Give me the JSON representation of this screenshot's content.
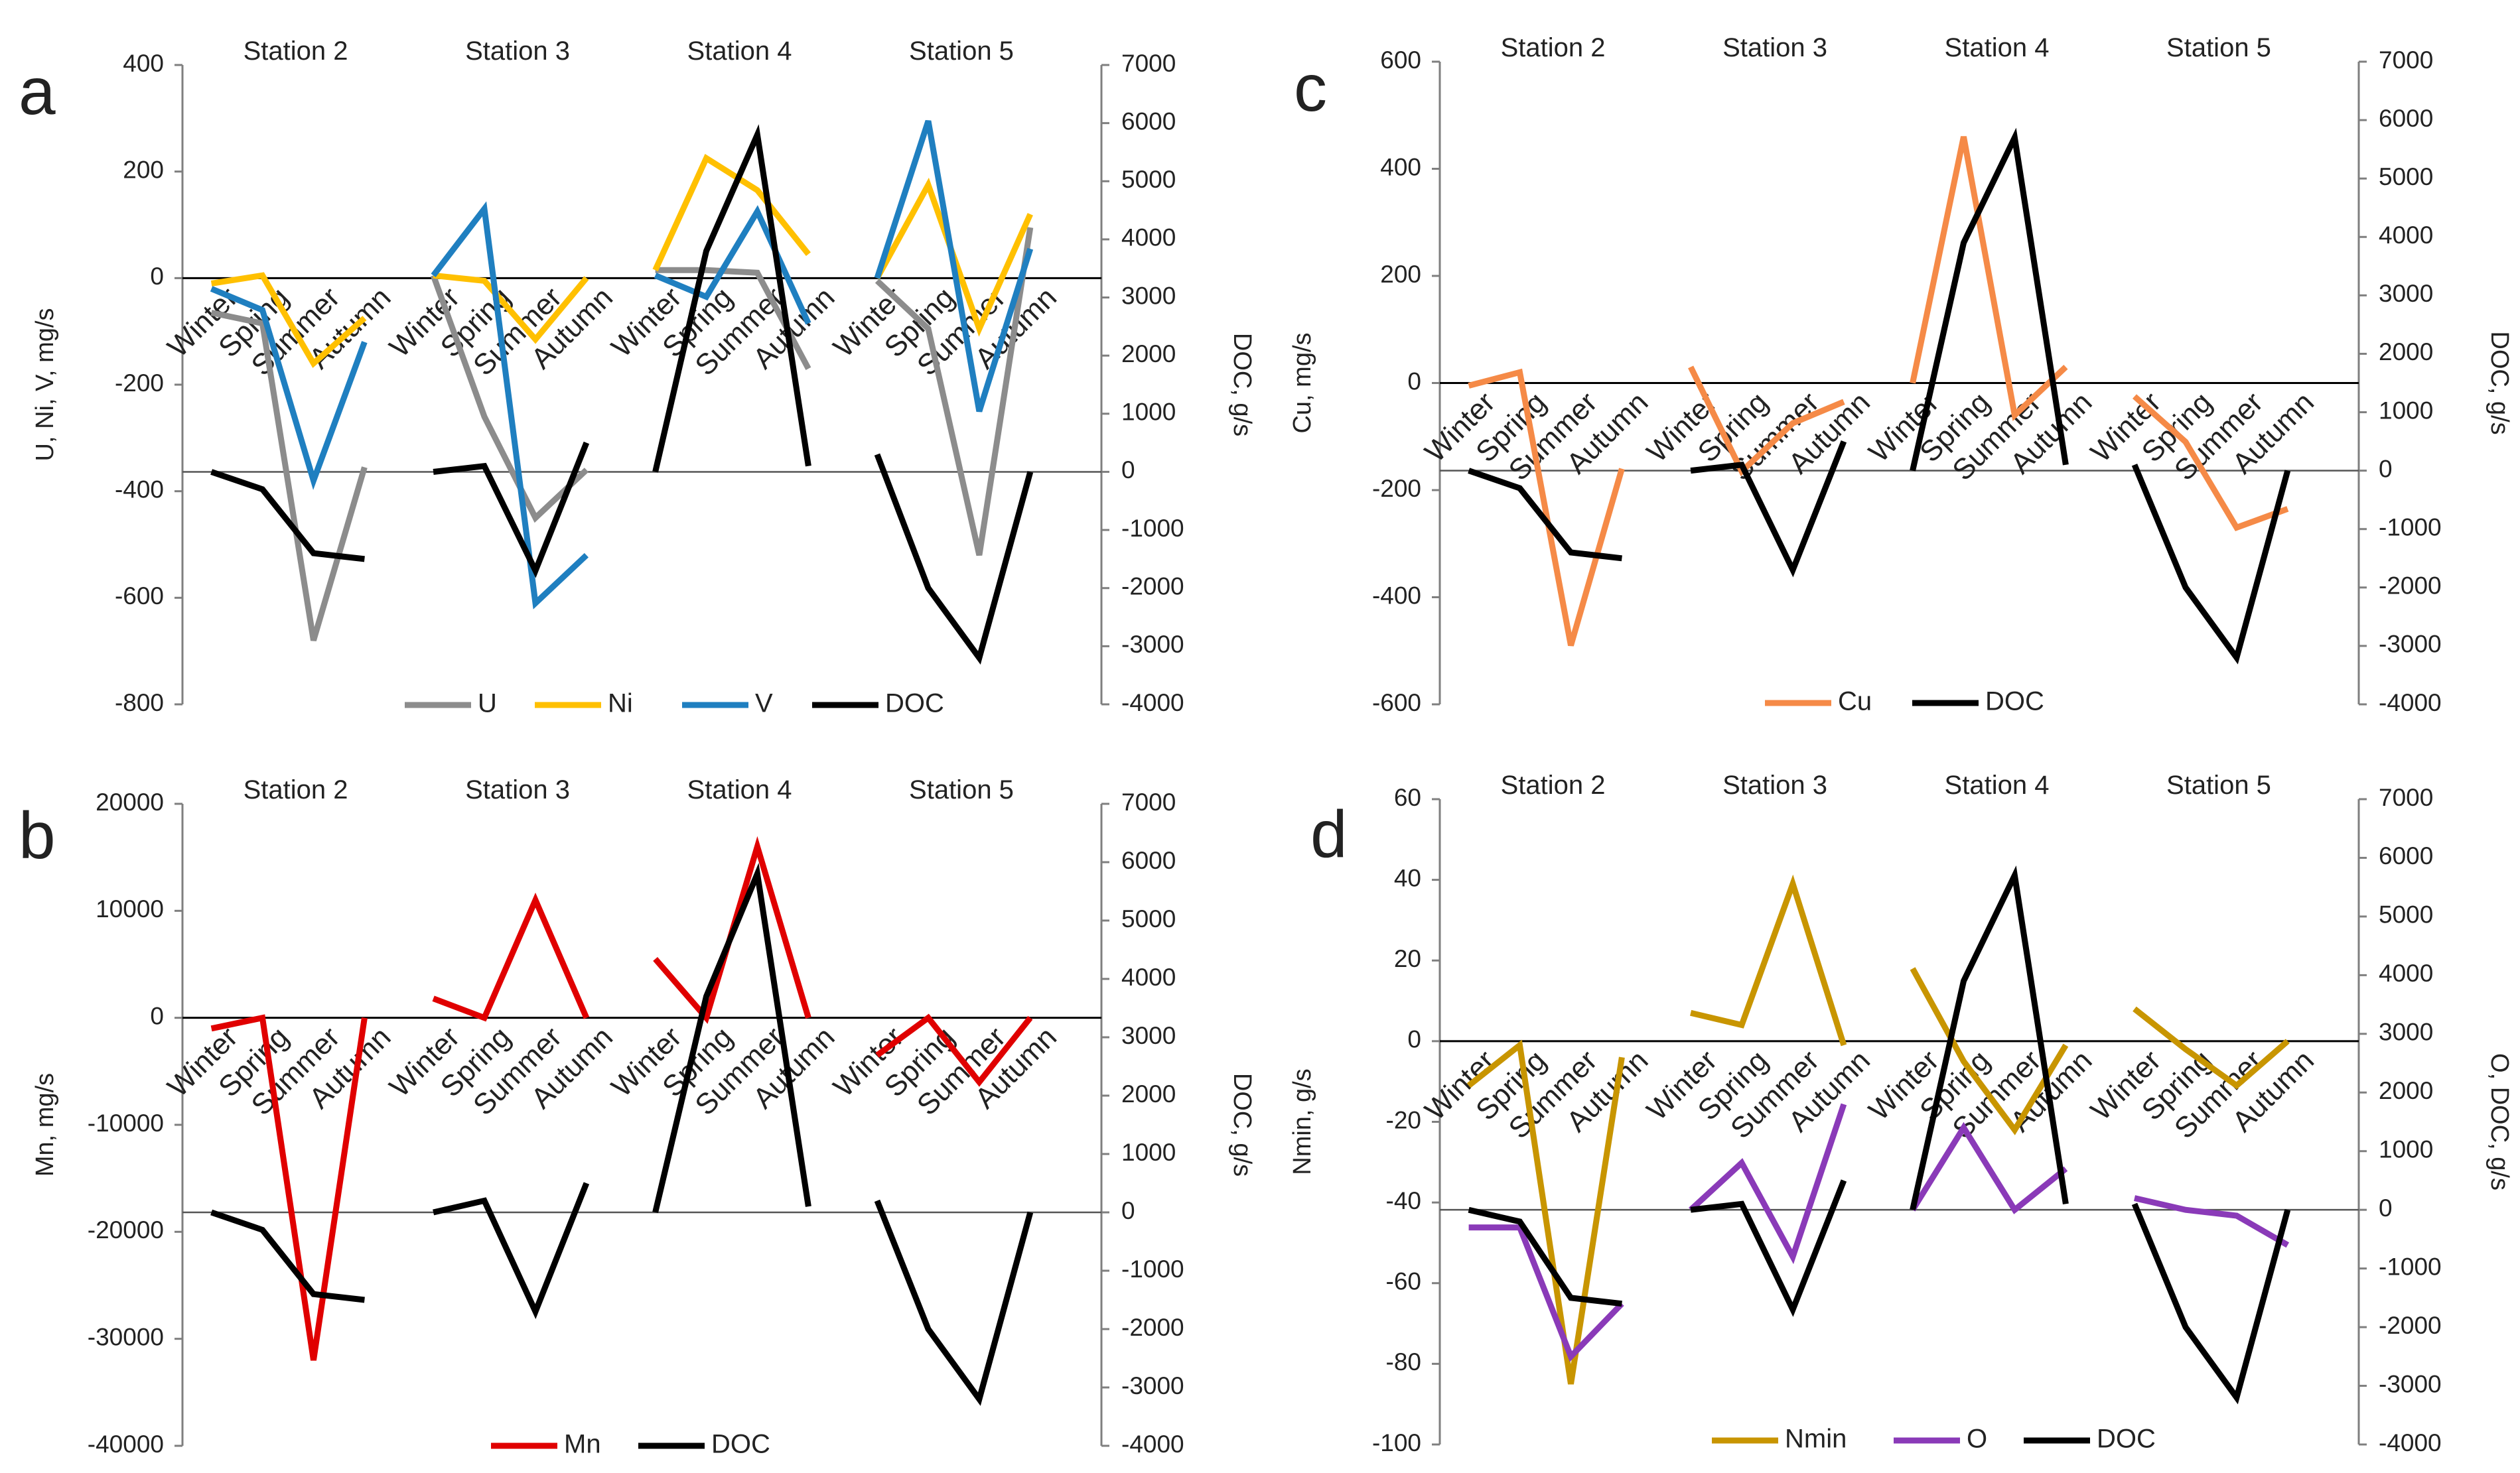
{
  "seasons": [
    "Winter",
    "Spring",
    "Summer",
    "Autumn"
  ],
  "colors": {
    "U": "#8c8c8c",
    "Ni": "#ffc000",
    "V": "#1f7fc0",
    "DOC": "#000000",
    "Cu": "#f58a47",
    "Mn": "#e00000",
    "Nmin": "#c89500",
    "O": "#8a3ab8"
  },
  "chart_data": [
    {
      "panel": "a",
      "type": "line",
      "stations": [
        "Station 2",
        "Station 3",
        "Station 4",
        "Station 5"
      ],
      "x_categories": [
        "Winter",
        "Spring",
        "Summer",
        "Autumn"
      ],
      "ylabel": "U, Ni, V, mg/s",
      "y2label": "DOC, g/s",
      "ylim": [
        -800,
        400
      ],
      "yticks": [
        -800,
        -600,
        -400,
        -200,
        0,
        200,
        400
      ],
      "y2lim": [
        -4000,
        7000
      ],
      "y2ticks": [
        -4000,
        -3000,
        -2000,
        -1000,
        0,
        1000,
        2000,
        3000,
        4000,
        5000,
        6000,
        7000
      ],
      "legend": [
        "U",
        "Ni",
        "V",
        "DOC"
      ],
      "series": [
        {
          "name": "U",
          "axis": "left",
          "values": [
            [
              -65,
              -85,
              -680,
              -355
            ],
            [
              5,
              -260,
              -450,
              -360
            ],
            [
              15,
              15,
              10,
              -170
            ],
            [
              -5,
              -95,
              -520,
              95
            ]
          ]
        },
        {
          "name": "Ni",
          "axis": "left",
          "values": [
            [
              -10,
              5,
              -160,
              -75
            ],
            [
              5,
              -5,
              -115,
              0
            ],
            [
              15,
              225,
              165,
              45
            ],
            [
              0,
              175,
              -95,
              120
            ]
          ]
        },
        {
          "name": "V",
          "axis": "left",
          "values": [
            [
              -20,
              -60,
              -380,
              -120
            ],
            [
              5,
              130,
              -610,
              -520
            ],
            [
              5,
              -35,
              125,
              -85
            ],
            [
              0,
              295,
              -250,
              55
            ]
          ]
        },
        {
          "name": "DOC",
          "axis": "right",
          "values": [
            [
              0,
              -300,
              -1400,
              -1500
            ],
            [
              0,
              100,
              -1700,
              500
            ],
            [
              0,
              3800,
              5800,
              100
            ],
            [
              300,
              -2000,
              -3200,
              0
            ]
          ]
        }
      ]
    },
    {
      "panel": "b",
      "type": "line",
      "stations": [
        "Station 2",
        "Station 3",
        "Station 4",
        "Station 5"
      ],
      "x_categories": [
        "Winter",
        "Spring",
        "Summer",
        "Autumn"
      ],
      "ylabel": "Mn, mg/s",
      "y2label": "DOC, g/s",
      "ylim": [
        -40000,
        20000
      ],
      "yticks": [
        -40000,
        -30000,
        -20000,
        -10000,
        0,
        10000,
        20000
      ],
      "y2lim": [
        -4000,
        7000
      ],
      "y2ticks": [
        -4000,
        -3000,
        -2000,
        -1000,
        0,
        1000,
        2000,
        3000,
        4000,
        5000,
        6000,
        7000
      ],
      "legend": [
        "Mn",
        "DOC"
      ],
      "series": [
        {
          "name": "Mn",
          "axis": "left",
          "values": [
            [
              -1000,
              0,
              -32000,
              0
            ],
            [
              1800,
              0,
              11000,
              0
            ],
            [
              5500,
              0,
              16000,
              0
            ],
            [
              -3500,
              0,
              -6000,
              0
            ]
          ]
        },
        {
          "name": "DOC",
          "axis": "right",
          "values": [
            [
              0,
              -300,
              -1400,
              -1500
            ],
            [
              0,
              200,
              -1700,
              500
            ],
            [
              0,
              3700,
              5800,
              100
            ],
            [
              200,
              -2000,
              -3200,
              0
            ]
          ]
        }
      ]
    },
    {
      "panel": "c",
      "type": "line",
      "stations": [
        "Station 2",
        "Station 3",
        "Station 4",
        "Station 5"
      ],
      "x_categories": [
        "Winter",
        "Spring",
        "Summer",
        "Autumn"
      ],
      "ylabel": "Cu, mg/s",
      "y2label": "DOC, g/s",
      "ylim": [
        -600,
        600
      ],
      "yticks": [
        -600,
        -400,
        -200,
        0,
        200,
        400,
        600
      ],
      "y2lim": [
        -4000,
        7000
      ],
      "y2ticks": [
        -4000,
        -3000,
        -2000,
        -1000,
        0,
        1000,
        2000,
        3000,
        4000,
        5000,
        6000,
        7000
      ],
      "legend": [
        "Cu",
        "DOC"
      ],
      "series": [
        {
          "name": "Cu",
          "axis": "left",
          "values": [
            [
              -5,
              20,
              -490,
              -160
            ],
            [
              30,
              -165,
              -75,
              -35
            ],
            [
              0,
              460,
              -60,
              30
            ],
            [
              -25,
              -110,
              -270,
              -235
            ]
          ]
        },
        {
          "name": "DOC",
          "axis": "right",
          "values": [
            [
              0,
              -300,
              -1400,
              -1500
            ],
            [
              0,
              100,
              -1700,
              500
            ],
            [
              0,
              3900,
              5700,
              100
            ],
            [
              100,
              -2000,
              -3200,
              0
            ]
          ]
        }
      ]
    },
    {
      "panel": "d",
      "type": "line",
      "stations": [
        "Station 2",
        "Station 3",
        "Station 4",
        "Station 5"
      ],
      "x_categories": [
        "Winter",
        "Spring",
        "Summer",
        "Autumn"
      ],
      "ylabel": "Nmin, g/s",
      "y2label": "O, DOC, g/s",
      "ylim": [
        -100,
        60
      ],
      "yticks": [
        -100,
        -80,
        -60,
        -40,
        -20,
        0,
        20,
        40,
        60
      ],
      "y2lim": [
        -4000,
        7000
      ],
      "y2ticks": [
        -4000,
        -3000,
        -2000,
        -1000,
        0,
        1000,
        2000,
        3000,
        4000,
        5000,
        6000,
        7000
      ],
      "legend": [
        "Nmin",
        "O",
        "DOC"
      ],
      "series": [
        {
          "name": "Nmin",
          "axis": "left",
          "values": [
            [
              -11,
              -1,
              -85,
              -4
            ],
            [
              7,
              4,
              39,
              -1
            ],
            [
              18,
              -5,
              -22,
              -1
            ],
            [
              8,
              -2,
              -11,
              0
            ]
          ]
        },
        {
          "name": "O",
          "axis": "right",
          "values": [
            [
              -300,
              -300,
              -2500,
              -1600
            ],
            [
              0,
              800,
              -800,
              1800
            ],
            [
              0,
              1400,
              0,
              700
            ],
            [
              200,
              0,
              -100,
              -600
            ]
          ]
        },
        {
          "name": "DOC",
          "axis": "right",
          "values": [
            [
              0,
              -200,
              -1500,
              -1600
            ],
            [
              0,
              100,
              -1700,
              500
            ],
            [
              0,
              3900,
              5700,
              100
            ],
            [
              100,
              -2000,
              -3200,
              0
            ]
          ]
        }
      ]
    }
  ]
}
